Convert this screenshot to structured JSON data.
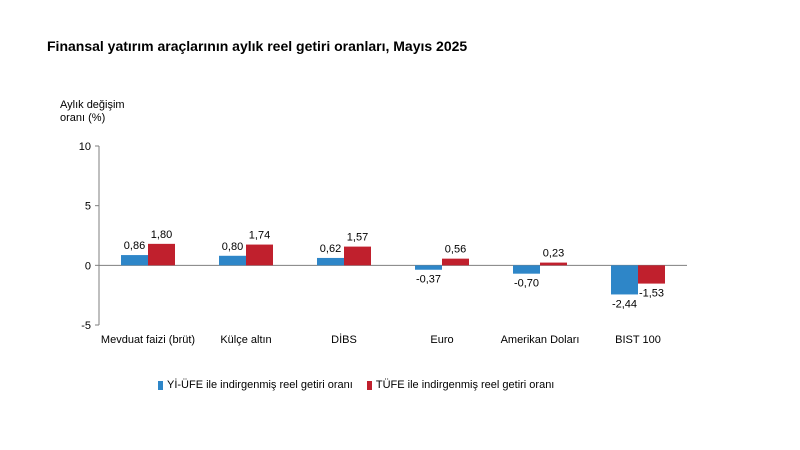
{
  "chart_data": {
    "type": "bar",
    "title": "Finansal yatırım araçlarının aylık reel getiri oranları, Mayıs 2025",
    "ylabel_lines": [
      "Aylık değişim",
      "oranı (%)"
    ],
    "xlabel": "",
    "ylim": [
      -5,
      10
    ],
    "yticks": [
      -5,
      0,
      5,
      10
    ],
    "categories": [
      "Mevduat faizi (brüt)",
      "Külçe altın",
      "DİBS",
      "Euro",
      "Amerikan Doları",
      "BIST 100"
    ],
    "series": [
      {
        "name": "Yİ-ÜFE ile indirgenmiş reel getiri oranı",
        "color": "#2E86C8",
        "values": [
          0.86,
          0.8,
          0.62,
          -0.37,
          -0.7,
          -2.44
        ],
        "labels": [
          "0,86",
          "0,80",
          "0,62",
          "-0,37",
          "-0,70",
          "-2,44"
        ]
      },
      {
        "name": "TÜFE ile indirgenmiş reel getiri oranı",
        "color": "#C0202D",
        "values": [
          1.8,
          1.74,
          1.57,
          0.56,
          0.23,
          -1.53
        ],
        "labels": [
          "1,80",
          "1,74",
          "1,57",
          "0,56",
          "0,23",
          "-1,53"
        ]
      }
    ],
    "grid": false,
    "legend_position": "bottom"
  }
}
